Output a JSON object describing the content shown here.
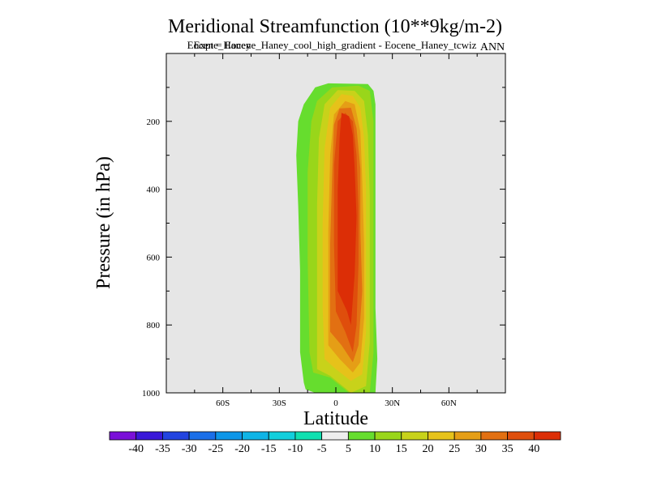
{
  "chart_data": {
    "type": "filled-contour",
    "title": "Meridional Streamfunction (10**9kg/m-2)",
    "subtitle_overlap_a": "Expt = Eocene_Haney_cool_high_gradient - Eocene_Haney_tcwiz",
    "subtitle_overlap_b": "Eocene_Haney",
    "season": "ANN",
    "xlabel": "Latitude",
    "ylabel": "Pressure (in hPa)",
    "x_axis": {
      "range": [
        -90,
        90
      ],
      "ticks": [
        {
          "value": -60,
          "label": "60S"
        },
        {
          "value": -30,
          "label": "30S"
        },
        {
          "value": 0,
          "label": "0"
        },
        {
          "value": 30,
          "label": "30N"
        },
        {
          "value": 60,
          "label": "60N"
        }
      ]
    },
    "y_axis": {
      "range": [
        0,
        1000
      ],
      "reversed": true,
      "ticks": [
        {
          "value": 200,
          "label": "200"
        },
        {
          "value": 400,
          "label": "400"
        },
        {
          "value": 600,
          "label": "600"
        },
        {
          "value": 800,
          "label": "800"
        },
        {
          "value": 1000,
          "label": "1000"
        }
      ]
    },
    "background_color": "#e6e6e6",
    "colorbar": {
      "levels": [
        "-40",
        "-35",
        "-30",
        "-25",
        "-20",
        "-15",
        "-10",
        "-5",
        "5",
        "10",
        "15",
        "20",
        "25",
        "30",
        "35",
        "40"
      ],
      "colors": [
        "#7a10d8",
        "#3a18d8",
        "#2244e0",
        "#1b6fe8",
        "#0e96e8",
        "#0fb4e6",
        "#12cfdc",
        "#10e0b0",
        "#eeeeee",
        "#66dd2e",
        "#99d61a",
        "#c8d21a",
        "#e6c21a",
        "#e59e16",
        "#e27012",
        "#df4e0c",
        "#dc2e06"
      ]
    },
    "contours": [
      {
        "level": "5 to 10",
        "color": "#66dd2e",
        "points": [
          [
            -16,
            990
          ],
          [
            -11,
            1000
          ],
          [
            -6,
            1000
          ],
          [
            5,
            1005
          ],
          [
            15,
            1005
          ],
          [
            21,
            1002
          ],
          [
            22,
            900
          ],
          [
            21,
            750
          ],
          [
            21,
            550
          ],
          [
            21,
            350
          ],
          [
            21,
            150
          ],
          [
            20,
            110
          ],
          [
            17,
            90
          ],
          [
            -4,
            88
          ],
          [
            -11,
            100
          ],
          [
            -17,
            150
          ],
          [
            -20,
            200
          ],
          [
            -21,
            300
          ],
          [
            -20,
            450
          ],
          [
            -19,
            640
          ],
          [
            -19,
            880
          ],
          [
            -17,
            970
          ]
        ]
      },
      {
        "level": "10 to 15",
        "color": "#99d61a",
        "points": [
          [
            -12,
            940
          ],
          [
            -3,
            955
          ],
          [
            7,
            1005
          ],
          [
            18,
            998
          ],
          [
            20,
            880
          ],
          [
            20,
            700
          ],
          [
            20,
            450
          ],
          [
            20,
            200
          ],
          [
            18,
            110
          ],
          [
            12,
            95
          ],
          [
            -2,
            100
          ],
          [
            -10,
            140
          ],
          [
            -13,
            200
          ],
          [
            -15,
            350
          ],
          [
            -15,
            600
          ],
          [
            -14,
            880
          ]
        ]
      },
      {
        "level": "15 to 20",
        "color": "#c8d21a",
        "points": [
          [
            -10,
            930
          ],
          [
            -3,
            950
          ],
          [
            8,
            1000
          ],
          [
            16,
            980
          ],
          [
            18,
            850
          ],
          [
            18,
            650
          ],
          [
            18,
            420
          ],
          [
            17,
            240
          ],
          [
            15,
            140
          ],
          [
            10,
            110
          ],
          [
            1,
            108
          ],
          [
            -6,
            150
          ],
          [
            -9,
            250
          ],
          [
            -10,
            450
          ],
          [
            -10,
            700
          ],
          [
            -10,
            880
          ]
        ]
      },
      {
        "level": "20 to 25",
        "color": "#e6c21a",
        "points": [
          [
            -6,
            900
          ],
          [
            0,
            930
          ],
          [
            8,
            965
          ],
          [
            14,
            945
          ],
          [
            16,
            820
          ],
          [
            16,
            620
          ],
          [
            16,
            400
          ],
          [
            15,
            250
          ],
          [
            13,
            160
          ],
          [
            9,
            125
          ],
          [
            3,
            120
          ],
          [
            -3,
            160
          ],
          [
            -6,
            280
          ],
          [
            -7,
            500
          ],
          [
            -7,
            750
          ]
        ]
      },
      {
        "level": "25 to 30",
        "color": "#e59e16",
        "points": [
          [
            -4,
            860
          ],
          [
            2,
            900
          ],
          [
            9,
            940
          ],
          [
            13,
            910
          ],
          [
            15,
            780
          ],
          [
            15,
            560
          ],
          [
            14,
            370
          ],
          [
            13,
            230
          ],
          [
            10,
            150
          ],
          [
            5,
            140
          ],
          [
            -1,
            180
          ],
          [
            -3,
            300
          ],
          [
            -4,
            520
          ],
          [
            -4,
            720
          ]
        ]
      },
      {
        "level": "30 to 35",
        "color": "#e27012",
        "points": [
          [
            -3,
            820
          ],
          [
            3,
            860
          ],
          [
            9,
            910
          ],
          [
            12,
            860
          ],
          [
            14,
            700
          ],
          [
            13,
            520
          ],
          [
            13,
            340
          ],
          [
            11,
            220
          ],
          [
            8,
            160
          ],
          [
            2,
            162
          ],
          [
            -1,
            210
          ],
          [
            -2,
            360
          ],
          [
            -3,
            560
          ]
        ]
      },
      {
        "level": "35 to 40",
        "color": "#df4e0c",
        "points": [
          [
            0,
            760
          ],
          [
            5,
            820
          ],
          [
            9,
            880
          ],
          [
            11,
            800
          ],
          [
            12,
            620
          ],
          [
            12,
            450
          ],
          [
            11,
            300
          ],
          [
            9,
            200
          ],
          [
            5,
            175
          ],
          [
            1,
            200
          ],
          [
            -1,
            330
          ],
          [
            -1,
            560
          ]
        ]
      },
      {
        "level": "> 40",
        "color": "#dc2e06",
        "points": [
          [
            1,
            700
          ],
          [
            6,
            760
          ],
          [
            8,
            800
          ],
          [
            10,
            650
          ],
          [
            11,
            480
          ],
          [
            10,
            340
          ],
          [
            9,
            240
          ],
          [
            7,
            185
          ],
          [
            3,
            175
          ],
          [
            2,
            250
          ],
          [
            1,
            400
          ]
        ]
      }
    ]
  }
}
